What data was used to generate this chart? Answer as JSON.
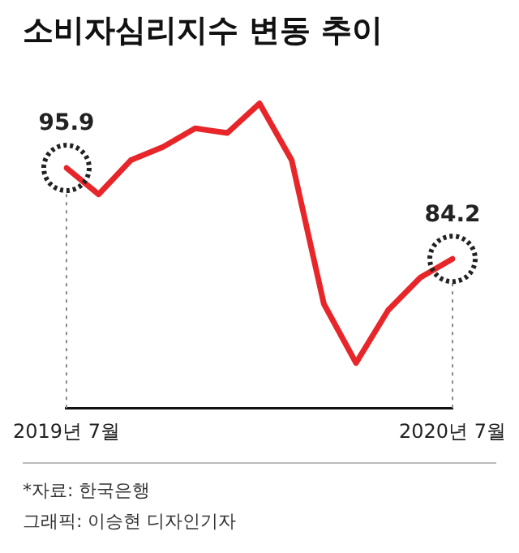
{
  "chart_data": {
    "type": "line",
    "title": "소비자심리지수 변동 추이",
    "categories": [
      "2019년 7월",
      null,
      null,
      null,
      null,
      null,
      null,
      null,
      null,
      null,
      null,
      null,
      "2020년 7월"
    ],
    "series": [
      {
        "color": "#e8262a",
        "values": [
          95.9,
          92.5,
          96.9,
          98.6,
          101.0,
          100.4,
          104.2,
          96.9,
          78.4,
          70.8,
          77.6,
          81.8,
          84.2
        ],
        "value_labels": [
          "95.9",
          null,
          null,
          null,
          null,
          null,
          null,
          null,
          null,
          null,
          null,
          null,
          "84.2"
        ]
      }
    ],
    "ref_lines": [
      {
        "axis": "x",
        "value": "2019년 7월",
        "color": "#888888",
        "line_style": "dotted"
      },
      {
        "axis": "x",
        "value": "2020년 7월",
        "color": "#888888",
        "line_style": "dotted"
      }
    ],
    "tick_labels": "x",
    "legend": false,
    "marker": "none",
    "line_style": "solid",
    "annotations": [
      "*자료: 한국은행",
      "그래픽: 이승현 디자인기자"
    ]
  }
}
